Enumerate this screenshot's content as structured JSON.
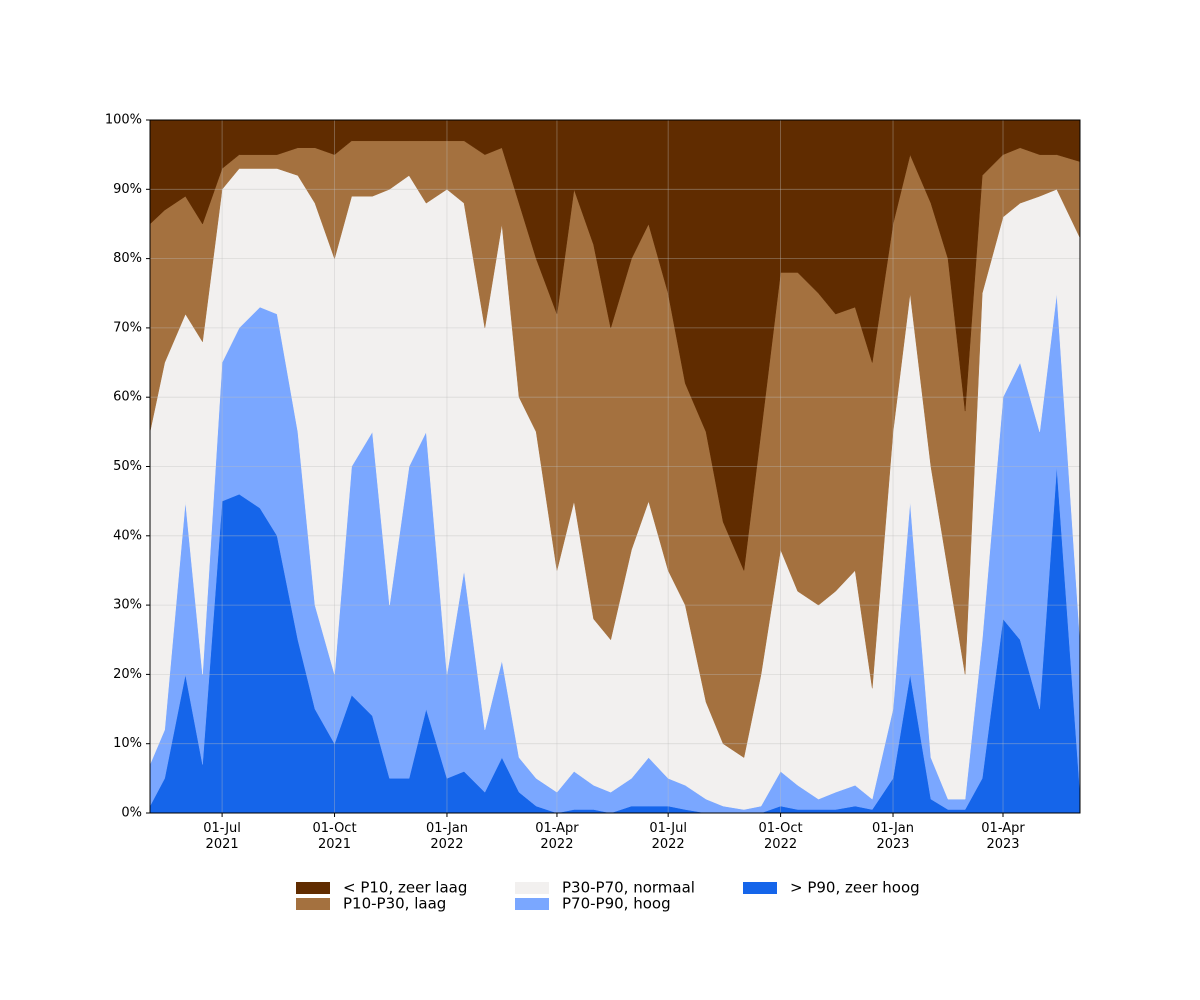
{
  "chart_data": {
    "type": "stacked_area",
    "x": [
      "2021-05-03",
      "2021-05-15",
      "2021-06-01",
      "2021-06-15",
      "2021-07-01",
      "2021-07-15",
      "2021-08-01",
      "2021-08-15",
      "2021-09-01",
      "2021-09-15",
      "2021-10-01",
      "2021-10-15",
      "2021-11-01",
      "2021-11-15",
      "2021-12-01",
      "2021-12-15",
      "2022-01-01",
      "2022-01-15",
      "2022-02-01",
      "2022-02-15",
      "2022-03-01",
      "2022-03-15",
      "2022-04-01",
      "2022-04-15",
      "2022-05-01",
      "2022-05-15",
      "2022-06-01",
      "2022-06-15",
      "2022-07-01",
      "2022-07-15",
      "2022-08-01",
      "2022-08-15",
      "2022-09-01",
      "2022-09-15",
      "2022-10-01",
      "2022-10-15",
      "2022-11-01",
      "2022-11-15",
      "2022-12-01",
      "2022-12-15",
      "2023-01-01",
      "2023-01-15",
      "2023-02-01",
      "2023-02-15",
      "2023-03-01",
      "2023-03-15",
      "2023-04-01",
      "2023-04-15",
      "2023-05-01",
      "2023-05-15",
      "2023-06-03"
    ],
    "series": [
      {
        "name": "< P10, zeer laag",
        "color": "#602c00",
        "values": [
          15,
          13,
          11,
          15,
          7,
          5,
          5,
          5,
          4,
          4,
          5,
          3,
          3,
          3,
          3,
          3,
          3,
          3,
          5,
          4,
          12,
          20,
          28,
          10,
          18,
          30,
          20,
          15,
          25,
          38,
          45,
          58,
          65,
          45,
          22,
          22,
          25,
          28,
          27,
          35,
          15,
          5,
          12,
          20,
          42,
          8,
          5,
          4,
          5,
          5,
          6
        ]
      },
      {
        "name": "P10-P30, laag",
        "color": "#a4713f",
        "values": [
          30,
          22,
          17,
          17,
          3,
          2,
          2,
          2,
          4,
          8,
          15,
          8,
          8,
          7,
          5,
          9,
          7,
          9,
          25,
          11,
          28,
          25,
          37,
          45,
          54,
          45,
          42,
          40,
          40,
          32,
          39,
          32,
          27,
          35,
          40,
          46,
          45,
          40,
          38,
          47,
          30,
          20,
          38,
          45,
          38,
          17,
          9,
          8,
          6,
          5,
          11
        ]
      },
      {
        "name": "P30-P70, normaal",
        "color": "#f2f0ef",
        "values": [
          48,
          53,
          27,
          48,
          25,
          23,
          20,
          21,
          37,
          58,
          60,
          39,
          34,
          60,
          42,
          33,
          70,
          53,
          58,
          63,
          52,
          50,
          32,
          39,
          24,
          22,
          33,
          37,
          30,
          26,
          14,
          9,
          7.5,
          19,
          32,
          28,
          28,
          29,
          31,
          16,
          40,
          30,
          42,
          33,
          18,
          50,
          26,
          23,
          34,
          15,
          58
        ]
      },
      {
        "name": "P70-P90, hoog",
        "color": "#7aa7ff",
        "values": [
          6,
          7,
          25,
          13,
          20,
          24,
          29,
          32,
          30,
          15,
          10,
          33,
          41,
          25,
          45,
          40,
          15,
          29,
          9,
          14,
          5,
          4,
          3,
          5.5,
          3.5,
          3,
          4,
          7,
          4,
          3.5,
          2,
          1,
          0.5,
          1,
          5,
          3.5,
          1.5,
          2.5,
          3,
          1.5,
          10,
          25,
          6,
          1.5,
          1.5,
          20,
          32,
          40,
          40,
          25,
          22
        ]
      },
      {
        "name": "> P90, zeer hoog",
        "color": "#1565ea",
        "values": [
          1,
          5,
          20,
          7,
          45,
          46,
          44,
          40,
          25,
          15,
          10,
          17,
          14,
          5,
          5,
          15,
          5,
          6,
          3,
          8,
          3,
          1,
          0,
          0.5,
          0.5,
          0,
          1,
          1,
          1,
          0.5,
          0,
          0,
          0,
          0,
          1,
          0.5,
          0.5,
          0.5,
          1,
          0.5,
          5,
          20,
          2,
          0.5,
          0.5,
          5,
          28,
          25,
          15,
          50,
          3
        ]
      }
    ],
    "xlim": [
      "2021-05-03",
      "2023-06-03"
    ],
    "xticks": [
      {
        "value": "2021-07-01",
        "label": "01-Jul\n2021"
      },
      {
        "value": "2021-10-01",
        "label": "01-Oct\n2021"
      },
      {
        "value": "2022-01-01",
        "label": "01-Jan\n2022"
      },
      {
        "value": "2022-04-01",
        "label": "01-Apr\n2022"
      },
      {
        "value": "2022-07-01",
        "label": "01-Jul\n2022"
      },
      {
        "value": "2022-10-01",
        "label": "01-Oct\n2022"
      },
      {
        "value": "2023-01-01",
        "label": "01-Jan\n2023"
      },
      {
        "value": "2023-04-01",
        "label": "01-Apr\n2023"
      }
    ],
    "ylim": [
      0,
      100
    ],
    "yticks": [
      {
        "value": 0,
        "label": "0%"
      },
      {
        "value": 10,
        "label": "10%"
      },
      {
        "value": 20,
        "label": "20%"
      },
      {
        "value": 30,
        "label": "30%"
      },
      {
        "value": 40,
        "label": "40%"
      },
      {
        "value": 50,
        "label": "50%"
      },
      {
        "value": 60,
        "label": "60%"
      },
      {
        "value": 70,
        "label": "70%"
      },
      {
        "value": 80,
        "label": "80%"
      },
      {
        "value": 90,
        "label": "90%"
      },
      {
        "value": 100,
        "label": "100%"
      }
    ],
    "grid": true,
    "legend": "bottom"
  }
}
